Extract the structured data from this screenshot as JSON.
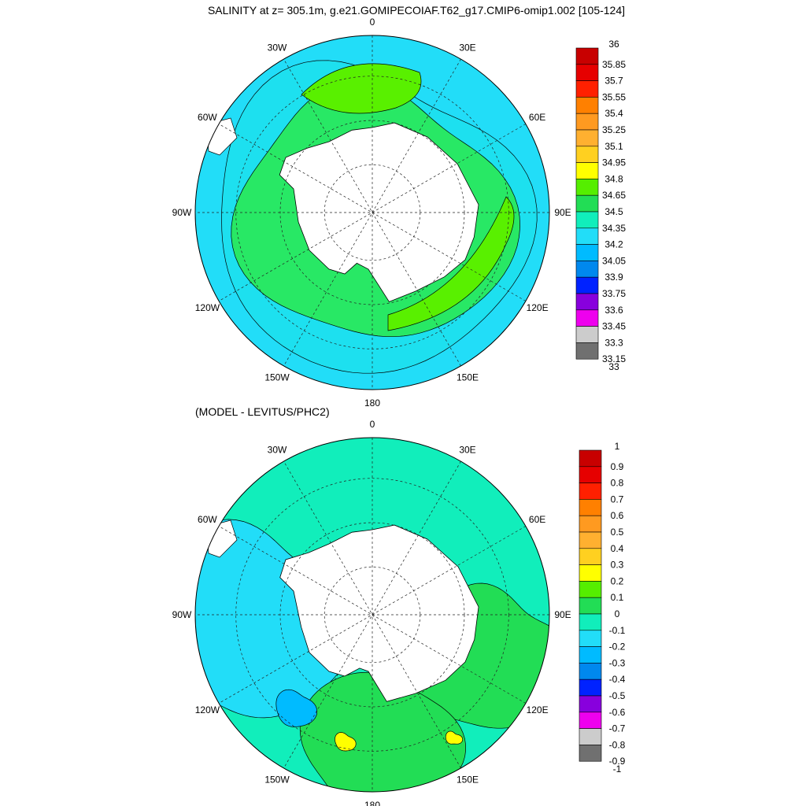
{
  "figure": {
    "title": "SALINITY at z= 305.1m, g.e21.GOMIPECOIAF.T62_g17.CMIP6-omip1.002 [105-124]",
    "subtitle": "(MODEL - LEVITUS/PHC2)"
  },
  "chart_data": [
    {
      "type": "heatmap",
      "projection": "south-polar-stereographic",
      "variable": "SALINITY",
      "depth_label": "z= 305.1m",
      "longitude_labels": [
        "0",
        "30E",
        "60E",
        "90E",
        "120E",
        "150E",
        "180",
        "150W",
        "120W",
        "90W",
        "60W",
        "30W"
      ],
      "colorbar": {
        "levels": [
          "36",
          "35.85",
          "35.7",
          "35.55",
          "35.4",
          "35.25",
          "35.1",
          "34.95",
          "34.8",
          "34.65",
          "34.5",
          "34.35",
          "34.2",
          "34.05",
          "33.9",
          "33.75",
          "33.6",
          "33.45",
          "33.3",
          "33.15",
          "33"
        ],
        "colors": [
          "#c80000",
          "#e60000",
          "#ff2000",
          "#ff8000",
          "#ff9a20",
          "#ffb030",
          "#ffd020",
          "#ffff00",
          "#55ee00",
          "#22dd55",
          "#11eebb",
          "#22ddf8",
          "#00bbff",
          "#0088ee",
          "#0022ff",
          "#8800dd",
          "#ee00ee",
          "#cccccc",
          "#707070"
        ]
      },
      "fields": {
        "ocean_color": "#1de0ef",
        "band_color": "#28e865",
        "high_band_color": "#59f000",
        "open_ocean_color": "#22ddf8",
        "land_color": "#ffffff"
      }
    },
    {
      "type": "heatmap",
      "projection": "south-polar-stereographic",
      "variable": "MODEL - LEVITUS/PHC2 difference",
      "longitude_labels": [
        "0",
        "30E",
        "60E",
        "90E",
        "120E",
        "150E",
        "180",
        "150W",
        "120W",
        "90W",
        "60W",
        "30W"
      ],
      "colorbar": {
        "levels": [
          "1",
          "0.9",
          "0.8",
          "0.7",
          "0.6",
          "0.5",
          "0.4",
          "0.3",
          "0.2",
          "0.1",
          "0",
          "-0.1",
          "-0.2",
          "-0.3",
          "-0.4",
          "-0.5",
          "-0.6",
          "-0.7",
          "-0.8",
          "-0.9",
          "-1"
        ],
        "colors": [
          "#c80000",
          "#e60000",
          "#ff2000",
          "#ff8000",
          "#ff9a20",
          "#ffb030",
          "#ffd020",
          "#ffff00",
          "#55ee00",
          "#22dd55",
          "#11eebb",
          "#22ddf8",
          "#00bbff",
          "#0088ee",
          "#0022ff",
          "#8800dd",
          "#ee00ee",
          "#cccccc",
          "#707070"
        ]
      },
      "fields": {
        "ocean_color": "#11eebb",
        "positive_color": "#22dd55",
        "negative_color": "#22ddf8",
        "strong_negative_color": "#00bbff",
        "peak_positive_color": "#ffff00",
        "land_color": "#ffffff"
      }
    }
  ]
}
